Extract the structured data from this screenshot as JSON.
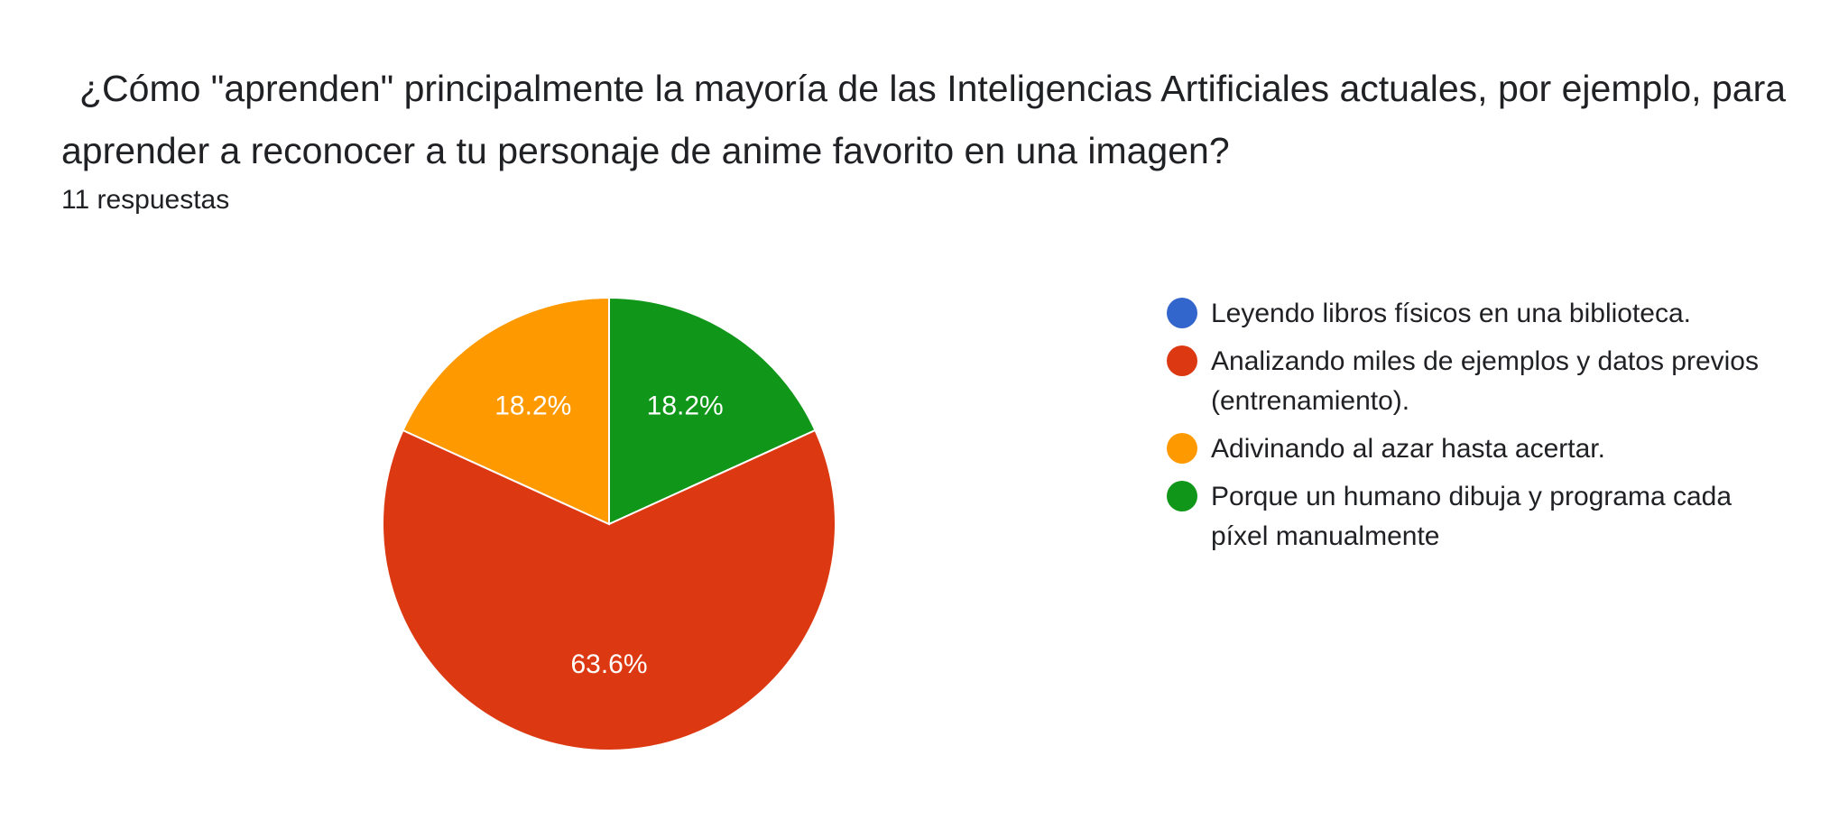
{
  "question": {
    "title": "¿Cómo \"aprenden\" principalmente la mayoría de las Inteligencias Artificiales actuales, por ejemplo, para aprender a reconocer a tu personaje de anime favorito en una imagen?",
    "responses_label": "11 respuestas"
  },
  "chart_data": {
    "type": "pie",
    "title": "",
    "legend_position": "right",
    "start_angle_deg": 90,
    "direction": "clockwise",
    "categories": [
      "Leyendo libros físicos en una biblioteca.",
      "Analizando miles de ejemplos y datos previos (entrenamiento).",
      "Adivinando al azar hasta acertar.",
      "Porque un humano dibuja y programa cada píxel manualmente"
    ],
    "legend_order": [
      0,
      1,
      2,
      3
    ],
    "draw_order": [
      3,
      1,
      2,
      0
    ],
    "values": [
      0,
      63.6,
      18.2,
      18.2
    ],
    "value_labels": [
      "",
      "63.6%",
      "18.2%",
      "18.2%"
    ],
    "colors": [
      "#3366cc",
      "#dc3912",
      "#ff9900",
      "#109618"
    ]
  }
}
